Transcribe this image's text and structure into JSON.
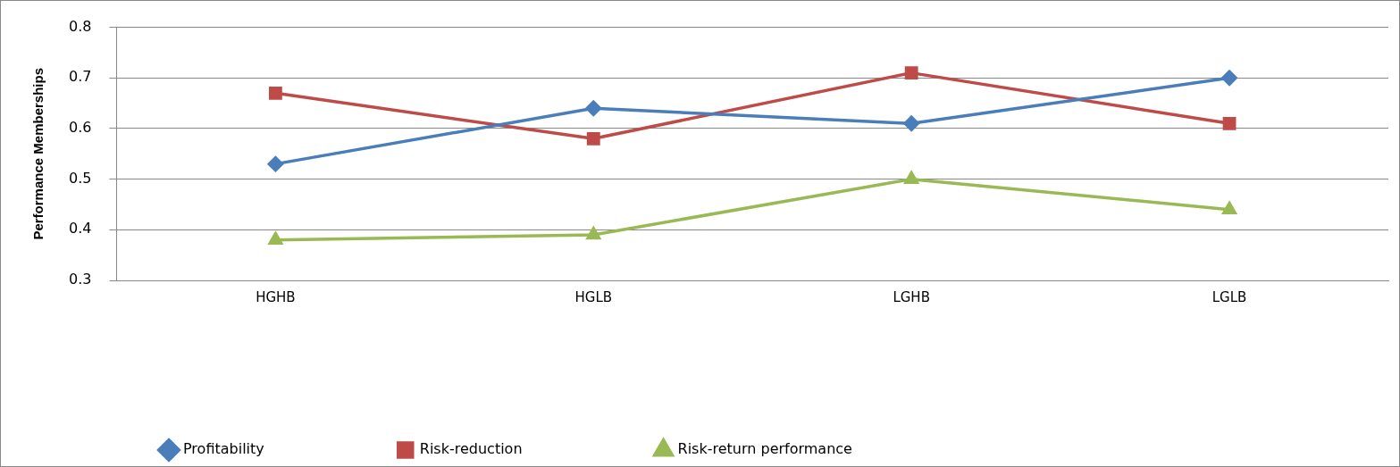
{
  "chart_data": {
    "type": "line",
    "ylabel": "Performance Memberships",
    "categories": [
      "HGHB",
      "HGLB",
      "LGHB",
      "LGLB"
    ],
    "series": [
      {
        "name": "Profitability",
        "color": "#4a7ebb",
        "marker": "diamond",
        "values": [
          0.53,
          0.64,
          0.61,
          0.7
        ]
      },
      {
        "name": "Risk-reduction",
        "color": "#be4b48",
        "marker": "square",
        "values": [
          0.67,
          0.58,
          0.71,
          0.61
        ]
      },
      {
        "name": "Risk-return performance",
        "color": "#98b954",
        "marker": "triangle",
        "values": [
          0.38,
          0.39,
          0.5,
          0.44
        ]
      }
    ],
    "ylim": [
      0.3,
      0.8
    ],
    "yticks": [
      0.3,
      0.4,
      0.5,
      0.6,
      0.7,
      0.8
    ],
    "grid": "y",
    "legend": "bottom",
    "line_style": "solid"
  }
}
